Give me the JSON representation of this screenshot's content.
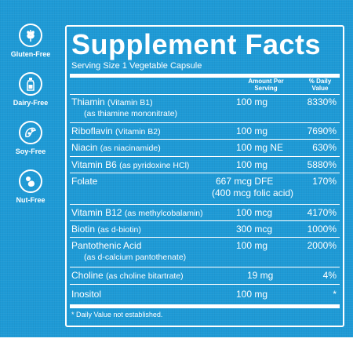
{
  "badges": [
    {
      "label": "Gluten-Free",
      "icon": "wheat-icon"
    },
    {
      "label": "Dairy-Free",
      "icon": "milk-bottle-icon"
    },
    {
      "label": "Soy-Free",
      "icon": "soybean-icon"
    },
    {
      "label": "Nut-Free",
      "icon": "nut-icon"
    }
  ],
  "panel": {
    "title": "Supplement Facts",
    "serving_size": "Serving Size 1 Vegetable Capsule",
    "col_amount": "Amount Per Serving",
    "col_dv": "% Daily Value",
    "footnote": "* Daily Value not established."
  },
  "nutrients": [
    {
      "name": "Thiamin",
      "paren": "(Vitamin B1)",
      "name2": "(as thiamine mononitrate)",
      "amount": "100 mg",
      "dv": "8330%"
    },
    {
      "name": "Riboflavin",
      "paren": "(Vitamin B2)",
      "amount": "100 mg",
      "dv": "7690%"
    },
    {
      "name": "Niacin",
      "paren": "(as niacinamide)",
      "amount": "100 mg NE",
      "dv": "630%"
    },
    {
      "name": "Vitamin B6",
      "paren": "(as pyridoxine HCl)",
      "amount": "100 mg",
      "dv": "5880%"
    },
    {
      "name": "Folate",
      "paren": "",
      "amount": "667 mcg DFE",
      "amount2": "(400 mcg folic acid)",
      "dv": "170%"
    },
    {
      "name": "Vitamin B12",
      "paren": "(as methylcobalamin)",
      "amount": "100 mcg",
      "dv": "4170%"
    },
    {
      "name": "Biotin",
      "paren": "(as d-biotin)",
      "amount": "300 mcg",
      "dv": "1000%"
    },
    {
      "name": "Pantothenic Acid",
      "paren": "",
      "name2": "(as d-calcium pantothenate)",
      "amount": "100 mg",
      "dv": "2000%"
    },
    {
      "name": "Choline",
      "paren": "(as choline bitartrate)",
      "amount": "19 mg",
      "dv": "4%"
    },
    {
      "name": "Inositol",
      "paren": "",
      "amount": "100 mg",
      "dv": "*"
    }
  ],
  "colors": {
    "background": "#1e9ad6",
    "text": "#ffffff"
  }
}
